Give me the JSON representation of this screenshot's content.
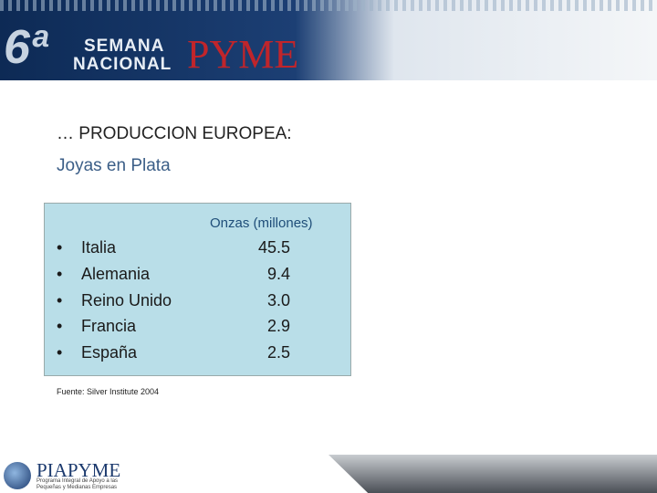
{
  "header": {
    "edition": "6ª",
    "line1": "SEMANA",
    "line2": "NACIONAL",
    "brand": "PYME"
  },
  "title": "… PRODUCCION EUROPEA:",
  "subtitle": "Joyas en Plata",
  "table": {
    "column_header": "Onzas (millones)",
    "rows": [
      [
        "Italia",
        "45.5"
      ],
      [
        "Alemania",
        "9.4"
      ],
      [
        "Reino Unido",
        "3.0"
      ],
      [
        "Francia",
        "2.9"
      ],
      [
        "España",
        "2.5"
      ]
    ]
  },
  "source": "Fuente: Silver Institute 2004",
  "footer": {
    "logo": "PIAPYME",
    "tagline": "Programa Integral de Apoyo a las Pequeñas y Medianas Empresas"
  }
}
